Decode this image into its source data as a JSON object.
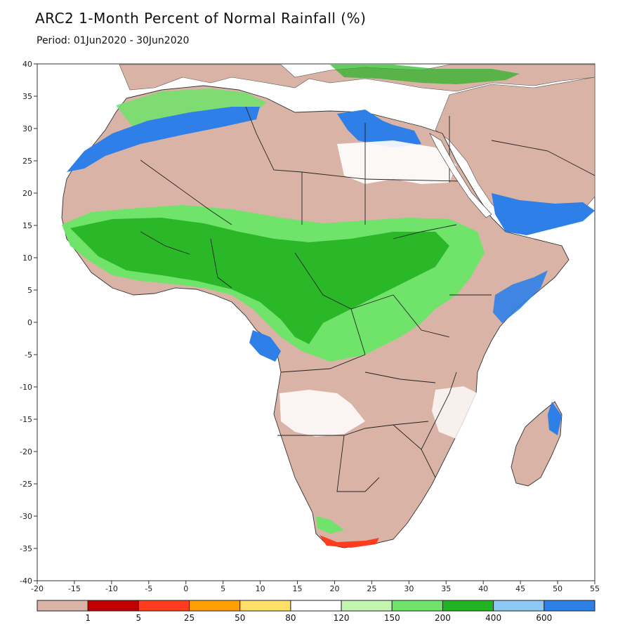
{
  "header": {
    "title": "ARC2 1-Month Percent of Normal Rainfall (%)",
    "subtitle": "Period: 01Jun2020 - 30Jun2020"
  },
  "map": {
    "lon_range": [
      -20,
      55
    ],
    "lat_range": [
      -40,
      40
    ],
    "lon_ticks": [
      "-20",
      "-15",
      "-10",
      "-5",
      "0",
      "5",
      "10",
      "15",
      "20",
      "25",
      "30",
      "35",
      "40",
      "45",
      "50",
      "55"
    ],
    "lat_ticks": [
      "40",
      "35",
      "30",
      "25",
      "20",
      "15",
      "10",
      "5",
      "0",
      "-5",
      "-10",
      "-15",
      "-20",
      "-25",
      "-30",
      "-35",
      "-40"
    ]
  },
  "legend": {
    "colors": [
      "#d9b3a5",
      "#c00000",
      "#ff3c1e",
      "#ffa000",
      "#ffe066",
      "#ffffff",
      "#c2f5b0",
      "#6fe36a",
      "#22b322",
      "#8ec8f5",
      "#2f7fe8"
    ],
    "labels": [
      "1",
      "5",
      "25",
      "50",
      "80",
      "120",
      "150",
      "200",
      "400",
      "600"
    ]
  }
}
